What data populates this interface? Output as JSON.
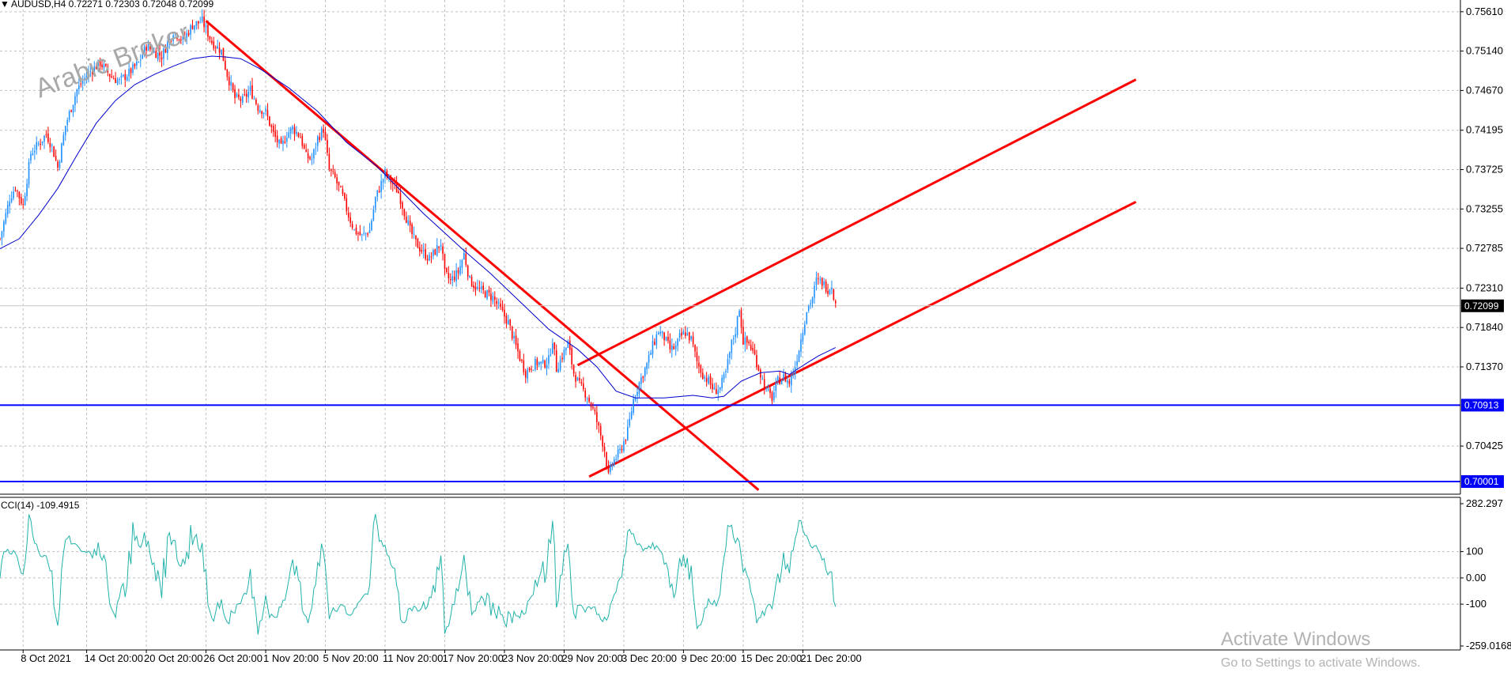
{
  "header": {
    "menu_glyph": "▼",
    "title": "AUDUSD,H4  0.72271 0.72303 0.72048 0.72099"
  },
  "watermark": "Arabic Broker",
  "activation": {
    "line1": "Activate Windows",
    "line2": "Go to Settings to activate Windows."
  },
  "chart_data": [
    {
      "type": "candlestick",
      "symbol": "AUDUSD",
      "timeframe": "H4",
      "ohlc_header": {
        "open": 0.72271,
        "high": 0.72303,
        "low": 0.72048,
        "close": 0.72099
      },
      "ylim": [
        0.6985,
        0.7575
      ],
      "y_ticks": [
        "0.75610",
        "0.75140",
        "0.74670",
        "0.74195",
        "0.73725",
        "0.73255",
        "0.72785",
        "0.72310",
        "0.71840",
        "0.71370",
        "0.70425"
      ],
      "x_ticks": [
        "8 Oct 2021",
        "14 Oct 20:00",
        "20 Oct 20:00",
        "26 Oct 20:00",
        "1 Nov 20:00",
        "5 Nov 20:00",
        "11 Nov 20:00",
        "17 Nov 20:00",
        "23 Nov 20:00",
        "29 Nov 20:00",
        "3 Dec 20:00",
        "9 Dec 20:00",
        "15 Dec 20:00",
        "21 Dec 20:00"
      ],
      "x_tick_positions": [
        12,
        45,
        76,
        107,
        138,
        169,
        200,
        231,
        262,
        293,
        324,
        355,
        386,
        417
      ],
      "bull_color": "#1e90ff",
      "bear_color": "#ff0000",
      "close_path": [
        [
          0,
          0.729
        ],
        [
          5,
          0.7338
        ],
        [
          8,
          0.7352
        ],
        [
          10,
          0.734
        ],
        [
          12,
          0.733
        ],
        [
          16,
          0.7392
        ],
        [
          20,
          0.7403
        ],
        [
          24,
          0.7415
        ],
        [
          27,
          0.74
        ],
        [
          30,
          0.7375
        ],
        [
          34,
          0.7425
        ],
        [
          40,
          0.7468
        ],
        [
          46,
          0.7488
        ],
        [
          52,
          0.75
        ],
        [
          58,
          0.7483
        ],
        [
          62,
          0.7478
        ],
        [
          67,
          0.7488
        ],
        [
          72,
          0.75
        ],
        [
          76,
          0.752
        ],
        [
          80,
          0.7513
        ],
        [
          84,
          0.7508
        ],
        [
          90,
          0.7538
        ],
        [
          95,
          0.7527
        ],
        [
          100,
          0.7545
        ],
        [
          105,
          0.755
        ],
        [
          110,
          0.7525
        ],
        [
          115,
          0.7514
        ],
        [
          118,
          0.7486
        ],
        [
          122,
          0.7458
        ],
        [
          126,
          0.7455
        ],
        [
          130,
          0.7468
        ],
        [
          134,
          0.7447
        ],
        [
          138,
          0.7441
        ],
        [
          142,
          0.7415
        ],
        [
          146,
          0.7398
        ],
        [
          149,
          0.7415
        ],
        [
          152,
          0.7422
        ],
        [
          156,
          0.7412
        ],
        [
          159,
          0.7388
        ],
        [
          162,
          0.7385
        ],
        [
          165,
          0.741
        ],
        [
          168,
          0.7421
        ],
        [
          171,
          0.7372
        ],
        [
          174,
          0.7362
        ],
        [
          178,
          0.734
        ],
        [
          181,
          0.7318
        ],
        [
          184,
          0.73
        ],
        [
          188,
          0.7293
        ],
        [
          192,
          0.73
        ],
        [
          195,
          0.7338
        ],
        [
          200,
          0.7368
        ],
        [
          204,
          0.7355
        ],
        [
          207,
          0.7345
        ],
        [
          210,
          0.7322
        ],
        [
          213,
          0.73
        ],
        [
          216,
          0.7285
        ],
        [
          220,
          0.7273
        ],
        [
          223,
          0.7266
        ],
        [
          226,
          0.7275
        ],
        [
          229,
          0.7285
        ],
        [
          231,
          0.7248
        ],
        [
          234,
          0.724
        ],
        [
          238,
          0.725
        ],
        [
          241,
          0.7272
        ],
        [
          244,
          0.724
        ],
        [
          248,
          0.723
        ],
        [
          252,
          0.7225
        ],
        [
          256,
          0.722
        ],
        [
          260,
          0.7205
        ],
        [
          264,
          0.719
        ],
        [
          267,
          0.7168
        ],
        [
          270,
          0.7148
        ],
        [
          273,
          0.713
        ],
        [
          276,
          0.7138
        ],
        [
          279,
          0.7142
        ],
        [
          282,
          0.714
        ],
        [
          285,
          0.7145
        ],
        [
          287,
          0.717
        ],
        [
          289,
          0.7135
        ],
        [
          292,
          0.715
        ],
        [
          295,
          0.7165
        ],
        [
          298,
          0.713
        ],
        [
          301,
          0.7115
        ],
        [
          305,
          0.7102
        ],
        [
          309,
          0.708
        ],
        [
          312,
          0.7055
        ],
        [
          314,
          0.7038
        ],
        [
          316,
          0.7006
        ],
        [
          318,
          0.7022
        ],
        [
          322,
          0.7036
        ],
        [
          326,
          0.706
        ],
        [
          329,
          0.7098
        ],
        [
          332,
          0.7118
        ],
        [
          336,
          0.714
        ],
        [
          339,
          0.7162
        ],
        [
          342,
          0.718
        ],
        [
          345,
          0.7172
        ],
        [
          348,
          0.7158
        ],
        [
          351,
          0.716
        ],
        [
          353,
          0.7172
        ],
        [
          356,
          0.7178
        ],
        [
          359,
          0.717
        ],
        [
          362,
          0.7143
        ],
        [
          365,
          0.7128
        ],
        [
          368,
          0.712
        ],
        [
          371,
          0.7108
        ],
        [
          374,
          0.7112
        ],
        [
          377,
          0.713
        ],
        [
          380,
          0.7165
        ],
        [
          382,
          0.718
        ],
        [
          384,
          0.7208
        ],
        [
          386,
          0.7168
        ],
        [
          389,
          0.7165
        ],
        [
          392,
          0.715
        ],
        [
          395,
          0.7128
        ],
        [
          398,
          0.7108
        ],
        [
          401,
          0.71
        ],
        [
          404,
          0.712
        ],
        [
          407,
          0.7125
        ],
        [
          410,
          0.7118
        ],
        [
          413,
          0.7138
        ],
        [
          416,
          0.717
        ],
        [
          419,
          0.7205
        ],
        [
          422,
          0.722
        ],
        [
          424,
          0.724
        ],
        [
          427,
          0.7238
        ],
        [
          430,
          0.723
        ],
        [
          432,
          0.7235
        ],
        [
          434,
          0.721
        ]
      ],
      "moving_average": {
        "color": "#0000cd",
        "points": [
          [
            0,
            0.7278
          ],
          [
            10,
            0.729
          ],
          [
            20,
            0.7318
          ],
          [
            30,
            0.735
          ],
          [
            40,
            0.739
          ],
          [
            50,
            0.7428
          ],
          [
            60,
            0.7455
          ],
          [
            70,
            0.7474
          ],
          [
            80,
            0.7486
          ],
          [
            90,
            0.7496
          ],
          [
            100,
            0.7505
          ],
          [
            110,
            0.7508
          ],
          [
            117,
            0.7507
          ],
          [
            125,
            0.7505
          ],
          [
            135,
            0.7493
          ],
          [
            150,
            0.747
          ],
          [
            165,
            0.7442
          ],
          [
            180,
            0.7405
          ],
          [
            195,
            0.7378
          ],
          [
            205,
            0.7355
          ],
          [
            220,
            0.732
          ],
          [
            240,
            0.7278
          ],
          [
            255,
            0.7248
          ],
          [
            270,
            0.7215
          ],
          [
            285,
            0.7182
          ],
          [
            300,
            0.7158
          ],
          [
            310,
            0.7137
          ],
          [
            320,
            0.7108
          ],
          [
            330,
            0.71
          ],
          [
            345,
            0.71
          ],
          [
            360,
            0.7103
          ],
          [
            370,
            0.71
          ],
          [
            376,
            0.7102
          ],
          [
            385,
            0.712
          ],
          [
            395,
            0.713
          ],
          [
            405,
            0.7132
          ],
          [
            410,
            0.7128
          ],
          [
            418,
            0.714
          ],
          [
            425,
            0.715
          ],
          [
            434,
            0.716
          ]
        ]
      },
      "current_price": {
        "label": "0.72099",
        "value": 0.72099
      },
      "horizontal_lines": [
        {
          "label": "0.70913",
          "value": 0.70913,
          "color": "#0000ff"
        },
        {
          "label": "0.70001",
          "value": 0.70001,
          "color": "#0000ff"
        }
      ],
      "trend_lines": [
        {
          "name": "downtrend",
          "color": "#ff0000",
          "from": [
            107,
            0.755
          ],
          "to": [
            394,
            0.699
          ]
        },
        {
          "name": "channel-top",
          "color": "#ff0000",
          "from": [
            300,
            0.7139
          ],
          "to": [
            590,
            0.748
          ]
        },
        {
          "name": "channel-bottom",
          "color": "#ff0000",
          "from": [
            306,
            0.7006
          ],
          "to": [
            590,
            0.7334
          ]
        }
      ]
    },
    {
      "type": "line",
      "indicator": "CCI",
      "period": 14,
      "title": "CCI(14) -109.4915",
      "value": -109.4915,
      "ylim": [
        -259.0168,
        282.297
      ],
      "y_ticks": [
        "282.297",
        "100",
        "0.00",
        "-100",
        "-259.0168"
      ],
      "color": "#20b2aa"
    }
  ]
}
